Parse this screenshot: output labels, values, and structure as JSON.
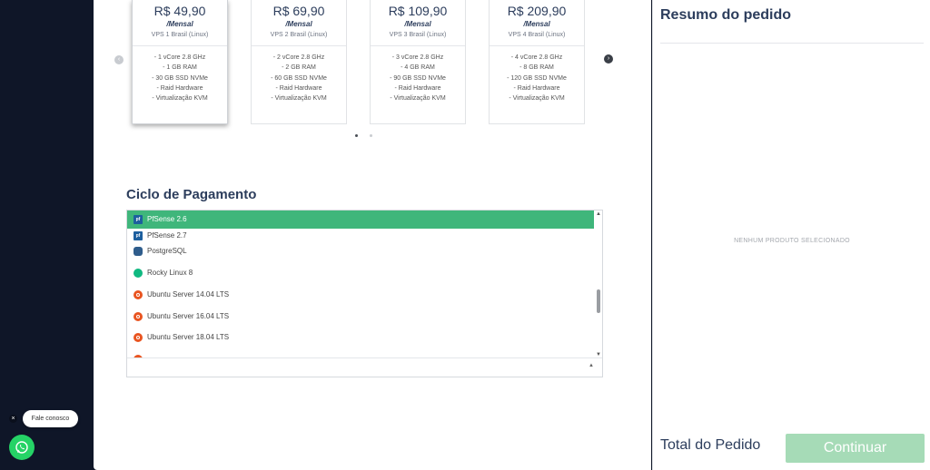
{
  "plans": [
    {
      "price": "R$ 49,90",
      "period": "/Mensal",
      "name": "VPS 1 Brasil (Linux)",
      "specs": [
        "- 1 vCore 2.8 GHz",
        "- 1 GB RAM",
        "- 30 GB SSD NVMe",
        "- Raid Hardware",
        "- Virtualização KVM"
      ]
    },
    {
      "price": "R$ 69,90",
      "period": "/Mensal",
      "name": "VPS 2 Brasil (Linux)",
      "specs": [
        "- 2 vCore 2.8 GHz",
        "- 2 GB RAM",
        "- 60 GB SSD NVMe",
        "- Raid Hardware",
        "- Virtualização KVM"
      ]
    },
    {
      "price": "R$ 109,90",
      "period": "/Mensal",
      "name": "VPS 3 Brasil (Linux)",
      "specs": [
        "- 3 vCore 2.8 GHz",
        "- 4 GB RAM",
        "- 90 GB SSD NVMe",
        "- Raid Hardware",
        "- Virtualização KVM"
      ]
    },
    {
      "price": "R$ 209,90",
      "period": "/Mensal",
      "name": "VPS 4 Brasil (Linux)",
      "specs": [
        "- 4 vCore 2.8 GHz",
        "- 8 GB RAM",
        "- 120 GB SSD NVMe",
        "- Raid Hardware",
        "- Virtualização KVM"
      ]
    }
  ],
  "carousel": {
    "prev_icon": "‹",
    "next_icon": "›"
  },
  "billing": {
    "title": "Ciclo de Pagamento"
  },
  "os_list": [
    {
      "label": "PfSense 2.6",
      "icon": "pfsense-icon",
      "selected": true
    },
    {
      "label": "PfSense 2.7",
      "icon": "pfsense-icon"
    },
    {
      "label": "PostgreSQL",
      "icon": "postgresql-icon"
    },
    {
      "label": "Rocky Linux 8",
      "icon": "rocky-linux-icon"
    },
    {
      "label": "Ubuntu Server 14.04 LTS",
      "icon": "ubuntu-icon"
    },
    {
      "label": "Ubuntu Server 16.04 LTS",
      "icon": "ubuntu-icon"
    },
    {
      "label": "Ubuntu Server 18.04 LTS",
      "icon": "ubuntu-icon"
    }
  ],
  "summary": {
    "title": "Resumo do pedido",
    "empty_text": "NENHUM PRODUTO SELECIONADO",
    "total_label": "Total do Pedido",
    "continue_label": "Continuar"
  },
  "chat": {
    "label": "Fale conosco",
    "close": "×"
  },
  "colors": {
    "selected_row": "#3fb67b",
    "continue_button": "#a6dbb7",
    "sidebar": "#0f1628",
    "heading": "#2c3d5c",
    "whatsapp": "#25d366"
  }
}
